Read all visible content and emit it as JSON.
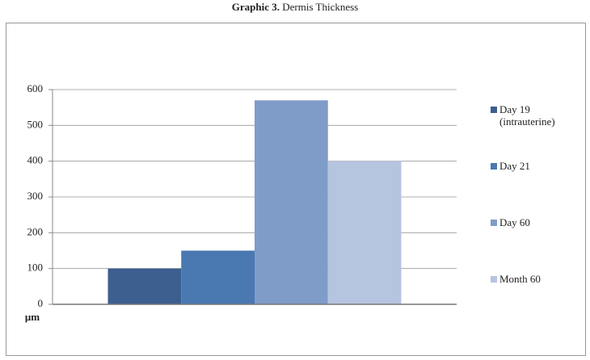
{
  "chart_data": {
    "type": "bar",
    "title_prefix": "Graphic 3.",
    "title": "Dermis Thickness",
    "y_label": "μm",
    "categories": [
      null
    ],
    "series": [
      {
        "name": "Day 19 (intrauterine)",
        "color": "#3c5f90",
        "values": [
          100
        ]
      },
      {
        "name": "Day 21",
        "color": "#4a78b1",
        "values": [
          150
        ]
      },
      {
        "name": "Day 60",
        "color": "#7f9cc9",
        "values": [
          570
        ]
      },
      {
        "name": "Month 60",
        "color": "#b5c4df",
        "values": [
          400
        ]
      }
    ],
    "ylim": [
      0,
      600
    ],
    "yticks": [
      0,
      100,
      200,
      300,
      400,
      500,
      600
    ],
    "grid": true,
    "legend": "right"
  }
}
